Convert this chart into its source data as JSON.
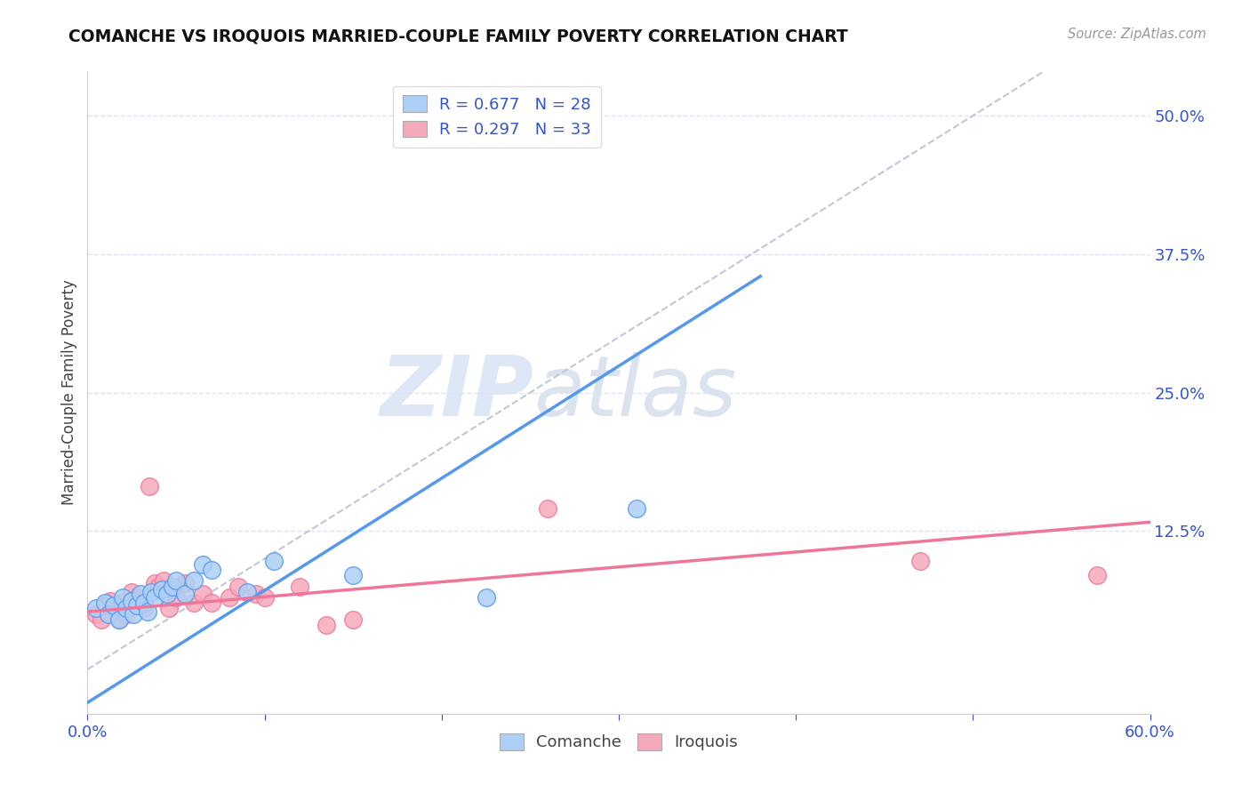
{
  "title": "COMANCHE VS IROQUOIS MARRIED-COUPLE FAMILY POVERTY CORRELATION CHART",
  "source": "Source: ZipAtlas.com",
  "ylabel": "Married-Couple Family Poverty",
  "xlim": [
    0.0,
    0.6
  ],
  "ylim": [
    -0.04,
    0.54
  ],
  "xticks": [
    0.0,
    0.1,
    0.2,
    0.3,
    0.4,
    0.5,
    0.6
  ],
  "xticklabels": [
    "0.0%",
    "",
    "",
    "",
    "",
    "",
    "60.0%"
  ],
  "ytick_positions": [
    0.0,
    0.125,
    0.25,
    0.375,
    0.5
  ],
  "ytick_labels": [
    "",
    "12.5%",
    "25.0%",
    "37.5%",
    "50.0%"
  ],
  "comanche_R": 0.677,
  "comanche_N": 28,
  "iroquois_R": 0.297,
  "iroquois_N": 33,
  "comanche_color": "#aecff5",
  "iroquois_color": "#f5aabb",
  "comanche_line_color": "#5599ee",
  "iroquois_line_color": "#ee7799",
  "diagonal_color": "#c0c8d8",
  "watermark_zip": "ZIP",
  "watermark_atlas": "atlas",
  "comanche_line_x0": 0.0,
  "comanche_line_y0": -0.03,
  "comanche_line_x1": 0.38,
  "comanche_line_y1": 0.355,
  "iroquois_line_x0": 0.0,
  "iroquois_line_y0": 0.052,
  "iroquois_line_x1": 0.6,
  "iroquois_line_y1": 0.133,
  "comanche_x": [
    0.005,
    0.01,
    0.012,
    0.015,
    0.018,
    0.02,
    0.022,
    0.025,
    0.026,
    0.028,
    0.03,
    0.032,
    0.034,
    0.036,
    0.038,
    0.042,
    0.045,
    0.048,
    0.05,
    0.055,
    0.06,
    0.065,
    0.07,
    0.09,
    0.105,
    0.15,
    0.225,
    0.31
  ],
  "comanche_y": [
    0.055,
    0.06,
    0.05,
    0.058,
    0.045,
    0.065,
    0.055,
    0.062,
    0.05,
    0.058,
    0.068,
    0.06,
    0.052,
    0.07,
    0.065,
    0.072,
    0.068,
    0.075,
    0.08,
    0.068,
    0.08,
    0.095,
    0.09,
    0.07,
    0.098,
    0.085,
    0.065,
    0.145
  ],
  "iroquois_x": [
    0.005,
    0.008,
    0.01,
    0.013,
    0.016,
    0.018,
    0.02,
    0.022,
    0.025,
    0.028,
    0.03,
    0.032,
    0.035,
    0.038,
    0.04,
    0.043,
    0.046,
    0.048,
    0.05,
    0.055,
    0.06,
    0.065,
    0.07,
    0.08,
    0.085,
    0.095,
    0.1,
    0.12,
    0.135,
    0.15,
    0.26,
    0.47,
    0.57
  ],
  "iroquois_y": [
    0.05,
    0.045,
    0.058,
    0.062,
    0.055,
    0.045,
    0.06,
    0.05,
    0.07,
    0.065,
    0.06,
    0.055,
    0.165,
    0.078,
    0.075,
    0.08,
    0.055,
    0.072,
    0.065,
    0.078,
    0.06,
    0.068,
    0.06,
    0.065,
    0.075,
    0.068,
    0.065,
    0.075,
    0.04,
    0.045,
    0.145,
    0.098,
    0.085
  ],
  "legend_text_color": "#3355cc",
  "axis_label_color": "#3355cc",
  "grid_color": "#dde4f0",
  "background_color": "#ffffff"
}
